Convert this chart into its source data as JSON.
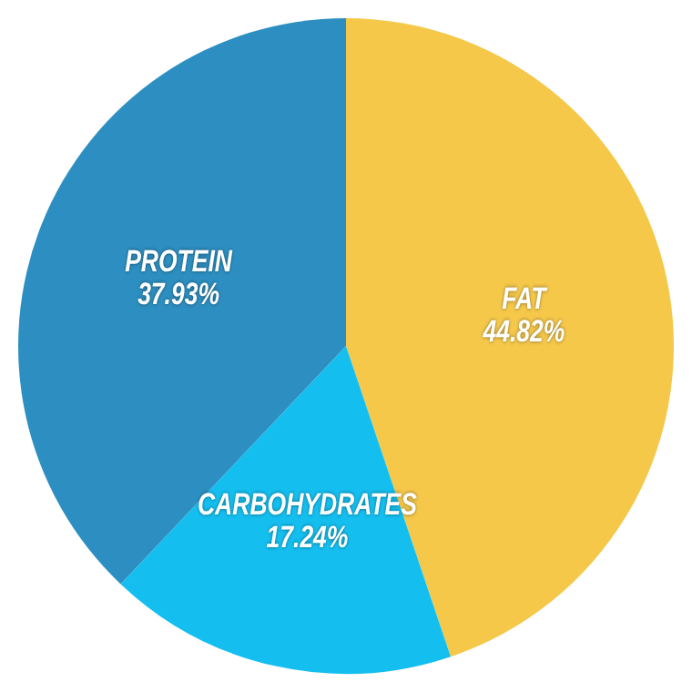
{
  "chart_data": {
    "type": "pie",
    "categories": [
      "FAT",
      "CARBOHYDRATES",
      "PROTEIN"
    ],
    "values": [
      44.82,
      17.24,
      37.93
    ],
    "colors": [
      "#f5c84a",
      "#14bff0",
      "#2d8fc1"
    ],
    "value_labels": [
      "44.82%",
      "17.24%",
      "37.93%"
    ],
    "legend": false
  }
}
